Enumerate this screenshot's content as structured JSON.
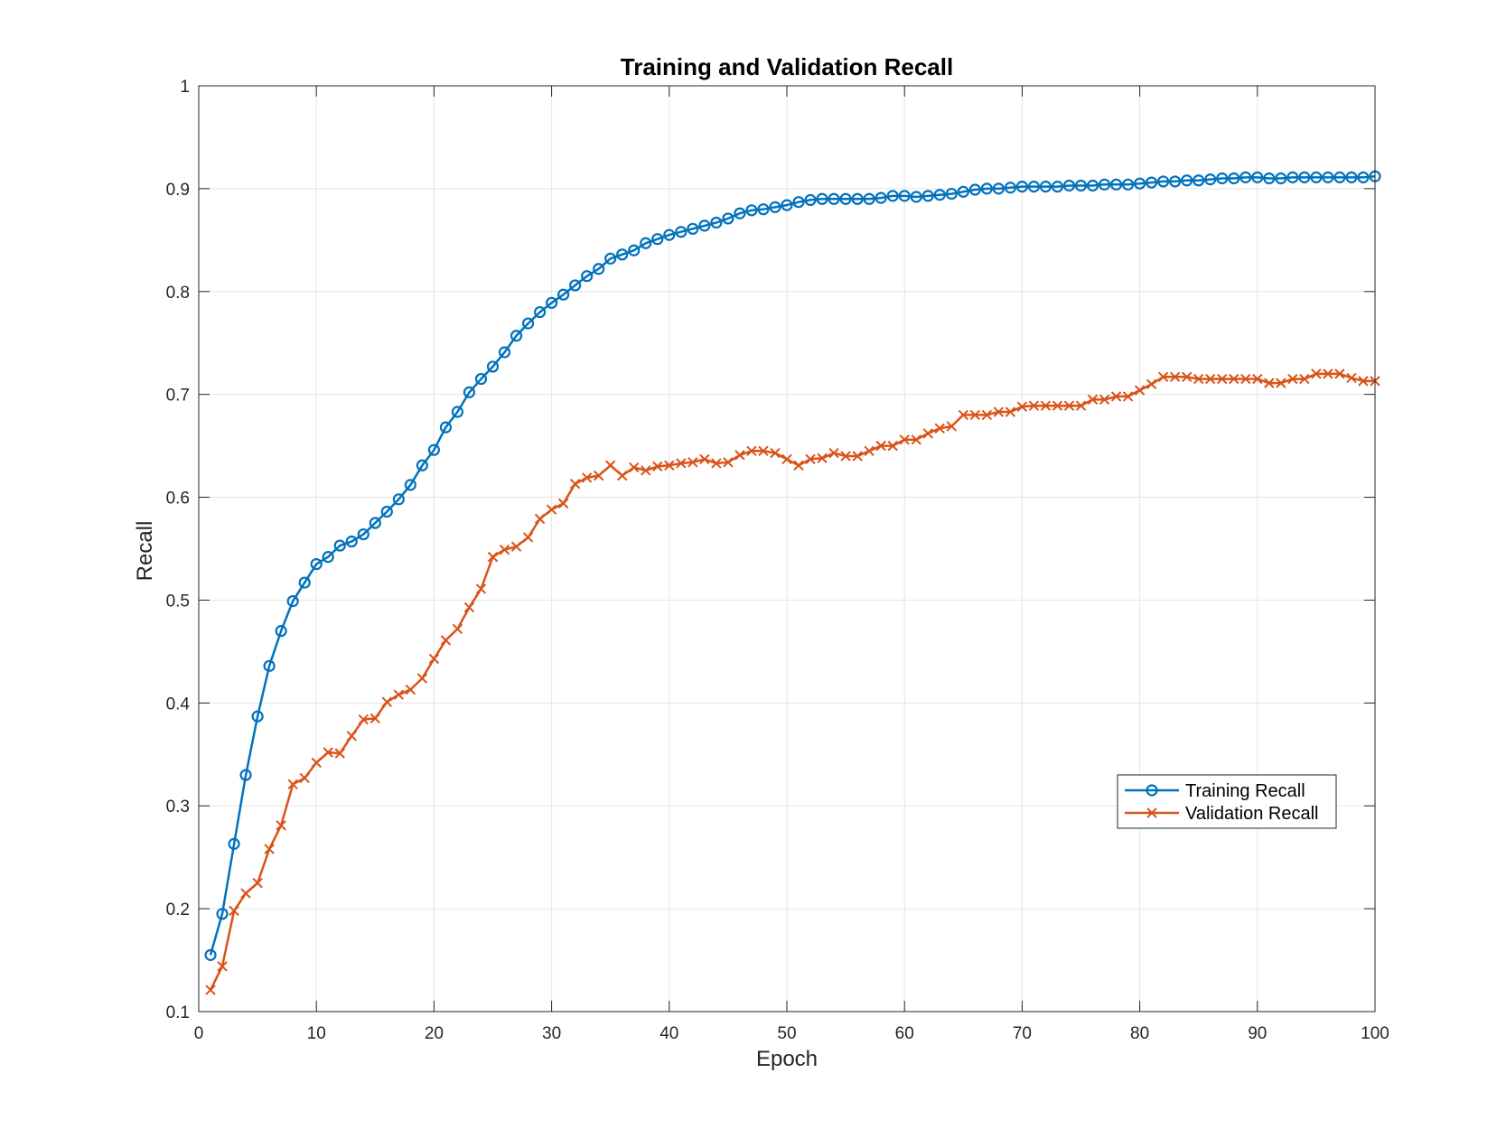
{
  "chart_data": {
    "type": "line",
    "title": "Training and Validation Recall",
    "xlabel": "Epoch",
    "ylabel": "Recall",
    "xlim": [
      0,
      100
    ],
    "ylim": [
      0.1,
      1
    ],
    "xticks": [
      "0",
      "10",
      "20",
      "30",
      "40",
      "50",
      "60",
      "70",
      "80",
      "90",
      "100"
    ],
    "yticks": [
      "0.1",
      "0.2",
      "0.3",
      "0.4",
      "0.5",
      "0.6",
      "0.7",
      "0.8",
      "0.9",
      "1"
    ],
    "grid": true,
    "legend_position": "lower-right",
    "series": [
      {
        "name": "Training Recall",
        "color": "#0072BD",
        "marker": "circle",
        "x": [
          1,
          2,
          3,
          4,
          5,
          6,
          7,
          8,
          9,
          10,
          11,
          12,
          13,
          14,
          15,
          16,
          17,
          18,
          19,
          20,
          21,
          22,
          23,
          24,
          25,
          26,
          27,
          28,
          29,
          30,
          31,
          32,
          33,
          34,
          35,
          36,
          37,
          38,
          39,
          40,
          41,
          42,
          43,
          44,
          45,
          46,
          47,
          48,
          49,
          50,
          51,
          52,
          53,
          54,
          55,
          56,
          57,
          58,
          59,
          60,
          61,
          62,
          63,
          64,
          65,
          66,
          67,
          68,
          69,
          70,
          71,
          72,
          73,
          74,
          75,
          76,
          77,
          78,
          79,
          80,
          81,
          82,
          83,
          84,
          85,
          86,
          87,
          88,
          89,
          90,
          91,
          92,
          93,
          94,
          95,
          96,
          97,
          98,
          99,
          100
        ],
        "values": [
          0.155,
          0.195,
          0.263,
          0.33,
          0.387,
          0.436,
          0.47,
          0.499,
          0.517,
          0.535,
          0.542,
          0.553,
          0.557,
          0.564,
          0.575,
          0.586,
          0.598,
          0.612,
          0.631,
          0.646,
          0.668,
          0.683,
          0.702,
          0.715,
          0.727,
          0.741,
          0.757,
          0.769,
          0.78,
          0.789,
          0.797,
          0.806,
          0.815,
          0.822,
          0.832,
          0.836,
          0.84,
          0.847,
          0.851,
          0.855,
          0.858,
          0.861,
          0.864,
          0.867,
          0.871,
          0.876,
          0.879,
          0.88,
          0.882,
          0.884,
          0.887,
          0.889,
          0.89,
          0.89,
          0.89,
          0.89,
          0.89,
          0.891,
          0.893,
          0.893,
          0.892,
          0.893,
          0.894,
          0.895,
          0.897,
          0.899,
          0.9,
          0.9,
          0.901,
          0.902,
          0.902,
          0.902,
          0.902,
          0.903,
          0.903,
          0.903,
          0.904,
          0.904,
          0.904,
          0.905,
          0.906,
          0.907,
          0.907,
          0.908,
          0.908,
          0.909,
          0.91,
          0.91,
          0.911,
          0.911,
          0.91,
          0.91,
          0.911,
          0.911,
          0.911,
          0.911,
          0.911,
          0.911,
          0.911,
          0.912
        ]
      },
      {
        "name": "Validation Recall",
        "color": "#D95319",
        "marker": "x",
        "x": [
          1,
          2,
          3,
          4,
          5,
          6,
          7,
          8,
          9,
          10,
          11,
          12,
          13,
          14,
          15,
          16,
          17,
          18,
          19,
          20,
          21,
          22,
          23,
          24,
          25,
          26,
          27,
          28,
          29,
          30,
          31,
          32,
          33,
          34,
          35,
          36,
          37,
          38,
          39,
          40,
          41,
          42,
          43,
          44,
          45,
          46,
          47,
          48,
          49,
          50,
          51,
          52,
          53,
          54,
          55,
          56,
          57,
          58,
          59,
          60,
          61,
          62,
          63,
          64,
          65,
          66,
          67,
          68,
          69,
          70,
          71,
          72,
          73,
          74,
          75,
          76,
          77,
          78,
          79,
          80,
          81,
          82,
          83,
          84,
          85,
          86,
          87,
          88,
          89,
          90,
          91,
          92,
          93,
          94,
          95,
          96,
          97,
          98,
          99,
          100
        ],
        "values": [
          0.121,
          0.144,
          0.198,
          0.215,
          0.225,
          0.258,
          0.281,
          0.321,
          0.327,
          0.342,
          0.352,
          0.351,
          0.368,
          0.384,
          0.385,
          0.401,
          0.408,
          0.413,
          0.424,
          0.443,
          0.461,
          0.472,
          0.493,
          0.511,
          0.542,
          0.549,
          0.552,
          0.561,
          0.579,
          0.588,
          0.594,
          0.613,
          0.619,
          0.621,
          0.631,
          0.621,
          0.629,
          0.626,
          0.63,
          0.631,
          0.633,
          0.634,
          0.637,
          0.633,
          0.634,
          0.641,
          0.645,
          0.645,
          0.643,
          0.637,
          0.631,
          0.637,
          0.638,
          0.643,
          0.64,
          0.64,
          0.645,
          0.65,
          0.65,
          0.656,
          0.656,
          0.662,
          0.667,
          0.669,
          0.68,
          0.68,
          0.68,
          0.683,
          0.683,
          0.688,
          0.689,
          0.689,
          0.689,
          0.689,
          0.689,
          0.695,
          0.695,
          0.698,
          0.698,
          0.704,
          0.71,
          0.717,
          0.717,
          0.717,
          0.715,
          0.715,
          0.715,
          0.715,
          0.715,
          0.715,
          0.711,
          0.711,
          0.715,
          0.715,
          0.72,
          0.72,
          0.72,
          0.716,
          0.713,
          0.713
        ]
      }
    ]
  }
}
